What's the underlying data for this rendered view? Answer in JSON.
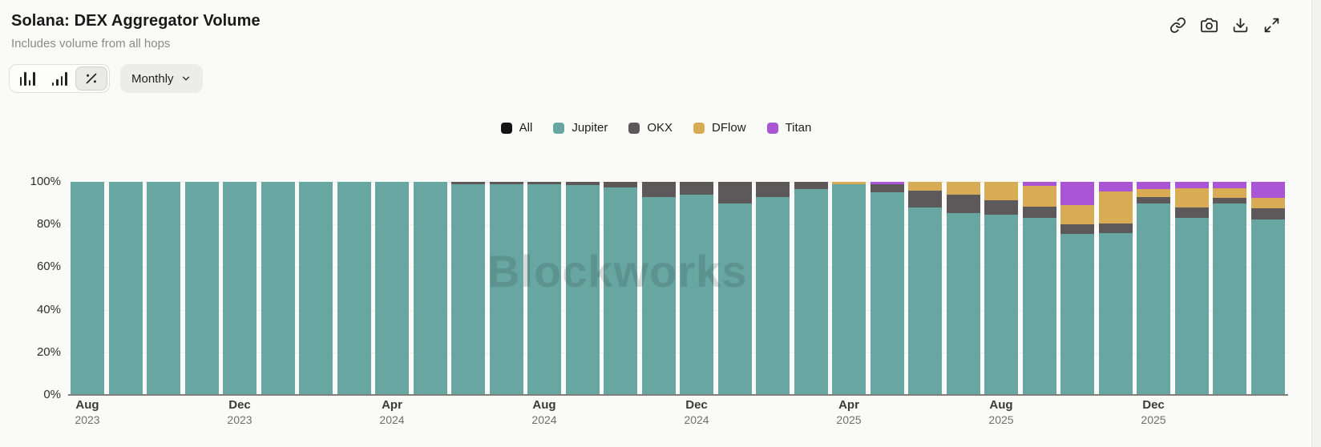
{
  "header": {
    "title": "Solana: DEX Aggregator Volume",
    "subtitle": "Includes volume from all hops"
  },
  "toolbar": {
    "chart_type_options": [
      "bar-chart",
      "stacked-bar-chart",
      "percent-stacked"
    ],
    "selected_chart_type": "percent-stacked",
    "period_label": "Monthly",
    "action_icons": [
      "copy-link",
      "screenshot",
      "download",
      "expand"
    ]
  },
  "watermark": "Blockworks",
  "colors": {
    "all": "#141414",
    "jupiter": "#68a6a1",
    "okx": "#5d595b",
    "dflow": "#d8ab55",
    "titan": "#aa55d6",
    "card_bg": "#fafaf9",
    "axis_line": "#807f78"
  },
  "chart_data": {
    "type": "bar",
    "stacked": true,
    "percent": true,
    "title": "Solana: DEX Aggregator Volume",
    "xlabel": "",
    "ylabel": "",
    "ylim": [
      0,
      100
    ],
    "grid": true,
    "legend_position": "top-center",
    "legend": [
      {
        "label": "All",
        "color": "#141414"
      },
      {
        "label": "Jupiter",
        "color": "#68a6a1"
      },
      {
        "label": "OKX",
        "color": "#5d595b"
      },
      {
        "label": "DFlow",
        "color": "#d8ab55"
      },
      {
        "label": "Titan",
        "color": "#aa55d6"
      }
    ],
    "y_ticks": [
      "100%",
      "80%",
      "60%",
      "40%",
      "20%",
      "0%"
    ],
    "x_ticks": [
      {
        "month": "Aug",
        "year": "2023"
      },
      {
        "month": "Dec",
        "year": "2023"
      },
      {
        "month": "Apr",
        "year": "2024"
      },
      {
        "month": "Aug",
        "year": "2024"
      },
      {
        "month": "Dec",
        "year": "2024"
      },
      {
        "month": "Apr",
        "year": "2025"
      },
      {
        "month": "Aug",
        "year": "2025"
      },
      {
        "month": "Dec",
        "year": "2025"
      }
    ],
    "categories": [
      "Aug 2023",
      "Sep 2023",
      "Oct 2023",
      "Nov 2023",
      "Dec 2023",
      "Jan 2024",
      "Feb 2024",
      "Mar 2024",
      "Apr 2024",
      "May 2024",
      "Jun 2024",
      "Jul 2024",
      "Aug 2024",
      "Sep 2024",
      "Oct 2024",
      "Nov 2024",
      "Dec 2024",
      "Jan 2025",
      "Feb 2025",
      "Mar 2025",
      "Apr 2025",
      "May 2025",
      "Jun 2025",
      "Jul 2025",
      "Aug 2025",
      "Sep 2025",
      "Oct 2025",
      "Nov 2025",
      "Dec 2025",
      "Jan 2026",
      "Feb 2026",
      "Mar 2026"
    ],
    "series": [
      {
        "name": "Jupiter",
        "color": "#68a6a1",
        "values": [
          100,
          100,
          100,
          100,
          100,
          100,
          100,
          100,
          100,
          100,
          99,
          99,
          99,
          98.5,
          97.5,
          93,
          94,
          90,
          93,
          96.5,
          99,
          95,
          88,
          85.5,
          84.5,
          83,
          75.5,
          76,
          90,
          83,
          90,
          82.5
        ]
      },
      {
        "name": "OKX",
        "color": "#5d595b",
        "values": [
          0,
          0,
          0,
          0,
          0,
          0,
          0,
          0,
          0,
          0,
          1,
          1,
          1,
          1.5,
          2.5,
          7,
          6,
          10,
          7,
          3.5,
          0,
          4,
          8,
          8.5,
          7,
          5.5,
          4.5,
          4.5,
          3,
          5,
          2.5,
          5
        ]
      },
      {
        "name": "DFlow",
        "color": "#d8ab55",
        "values": [
          0,
          0,
          0,
          0,
          0,
          0,
          0,
          0,
          0,
          0,
          0,
          0,
          0,
          0,
          0,
          0,
          0,
          0,
          0,
          0,
          1,
          0,
          4,
          6,
          8.5,
          9.5,
          9,
          15,
          3.5,
          9,
          4.5,
          5
        ]
      },
      {
        "name": "Titan",
        "color": "#aa55d6",
        "values": [
          0,
          0,
          0,
          0,
          0,
          0,
          0,
          0,
          0,
          0,
          0,
          0,
          0,
          0,
          0,
          0,
          0,
          0,
          0,
          0,
          0,
          1,
          0,
          0,
          0,
          2,
          11,
          4.5,
          3.5,
          3,
          3,
          7.5
        ]
      }
    ]
  }
}
